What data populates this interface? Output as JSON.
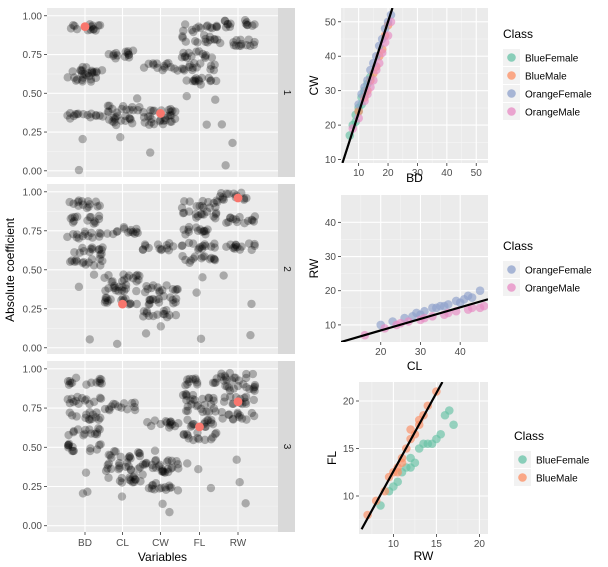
{
  "chart_data": [
    {
      "type": "scatter",
      "facet_type": "strip-jitter",
      "xlabel": "Variables",
      "ylabel": "Absolute coefficient",
      "categories": [
        "BD",
        "CL",
        "CW",
        "FL",
        "RW"
      ],
      "ylim": [
        0,
        1
      ],
      "yticks": [
        "0.00",
        "0.25",
        "0.50",
        "0.75",
        "1.00"
      ],
      "grid": true,
      "point_color": "#000000",
      "highlight_color": "#f8766d",
      "panels": [
        {
          "strip_label": "1",
          "clusters": {
            "BD": [
              0.92,
              0.65,
              0.6,
              0.35
            ],
            "CL": [
              0.75,
              0.4,
              0.33
            ],
            "CW": [
              0.67,
              0.37,
              0.32
            ],
            "FL": [
              0.92,
              0.85,
              0.75,
              0.67,
              0.58
            ],
            "RW": [
              0.95,
              0.83
            ]
          },
          "highlights": [
            {
              "x": "BD",
              "y": 0.93
            },
            {
              "x": "CW",
              "y": 0.37
            }
          ]
        },
        {
          "strip_label": "2",
          "clusters": {
            "BD": [
              0.92,
              0.82,
              0.72,
              0.62,
              0.55
            ],
            "CL": [
              0.75,
              0.45,
              0.38,
              0.3
            ],
            "CW": [
              0.65,
              0.38,
              0.3,
              0.22
            ],
            "FL": [
              0.92,
              0.85,
              0.75,
              0.65,
              0.57
            ],
            "RW": [
              0.97,
              0.82,
              0.65
            ]
          },
          "highlights": [
            {
              "x": "CL",
              "y": 0.28
            },
            {
              "x": "RW",
              "y": 0.96
            }
          ]
        },
        {
          "strip_label": "3",
          "clusters": {
            "BD": [
              0.92,
              0.8,
              0.7,
              0.6,
              0.5
            ],
            "CL": [
              0.76,
              0.45,
              0.38,
              0.3
            ],
            "CW": [
              0.65,
              0.4,
              0.35,
              0.25
            ],
            "FL": [
              0.92,
              0.82,
              0.75,
              0.65,
              0.57
            ],
            "RW": [
              0.95,
              0.88,
              0.8,
              0.7
            ]
          },
          "highlights": [
            {
              "x": "FL",
              "y": 0.63
            },
            {
              "x": "RW",
              "y": 0.79
            }
          ]
        }
      ]
    },
    {
      "type": "scatter",
      "xlabel": "BD",
      "ylabel": "CW",
      "xlim": [
        4,
        54
      ],
      "ylim": [
        9,
        54
      ],
      "xticks": [
        10,
        20,
        30,
        40,
        50
      ],
      "yticks": [
        10,
        20,
        30,
        40,
        50
      ],
      "legend_title": "Class",
      "legend_position": "right",
      "series": [
        {
          "name": "BlueFemale",
          "color": "#66c2a5",
          "points": [
            [
              7,
              17
            ],
            [
              8,
              20
            ],
            [
              9,
              23
            ],
            [
              10,
              25
            ],
            [
              11,
              28
            ],
            [
              12,
              30
            ],
            [
              13,
              32
            ],
            [
              11,
              26
            ],
            [
              9,
              21
            ],
            [
              14,
              34
            ],
            [
              12,
              29
            ],
            [
              10,
              24
            ]
          ]
        },
        {
          "name": "BlueMale",
          "color": "#fc8d62",
          "points": [
            [
              10,
              24
            ],
            [
              12,
              28
            ],
            [
              14,
              33
            ],
            [
              16,
              37
            ],
            [
              18,
              42
            ],
            [
              17,
              40
            ],
            [
              19,
              46
            ],
            [
              20,
              49
            ],
            [
              15,
              35
            ],
            [
              13,
              30
            ]
          ]
        },
        {
          "name": "OrangeFemale",
          "color": "#8da0cb",
          "points": [
            [
              10,
              26
            ],
            [
              12,
              31
            ],
            [
              14,
              36
            ],
            [
              16,
              40
            ],
            [
              18,
              45
            ],
            [
              19,
              48
            ],
            [
              21,
              52
            ],
            [
              15,
              38
            ],
            [
              13,
              33
            ],
            [
              17,
              43
            ],
            [
              20,
              50
            ],
            [
              11,
              29
            ]
          ]
        },
        {
          "name": "OrangeMale",
          "color": "#e78ac3",
          "points": [
            [
              8,
              19
            ],
            [
              10,
              22
            ],
            [
              12,
              27
            ],
            [
              14,
              31
            ],
            [
              16,
              36
            ],
            [
              18,
              41
            ],
            [
              20,
              46
            ],
            [
              21,
              50
            ],
            [
              13,
              29
            ],
            [
              15,
              33
            ],
            [
              17,
              38
            ],
            [
              19,
              44
            ]
          ]
        }
      ],
      "regression_line": [
        [
          4.5,
          9
        ],
        [
          21.5,
          54
        ]
      ]
    },
    {
      "type": "scatter",
      "xlabel": "CL",
      "ylabel": "RW",
      "xlim": [
        10,
        47
      ],
      "ylim": [
        5,
        48
      ],
      "xticks": [
        20,
        30,
        40
      ],
      "yticks": [
        10,
        20,
        30,
        40
      ],
      "legend_title": "Class",
      "legend_position": "right",
      "series": [
        {
          "name": "OrangeFemale",
          "color": "#8da0cb",
          "points": [
            [
              20,
              10
            ],
            [
              23,
              11
            ],
            [
              26,
              12
            ],
            [
              29,
              13.5
            ],
            [
              31,
              14
            ],
            [
              33,
              15
            ],
            [
              35,
              15.5
            ],
            [
              37,
              16
            ],
            [
              39,
              17
            ],
            [
              41,
              17.5
            ],
            [
              43,
              18
            ],
            [
              45,
              20
            ],
            [
              28,
              12.5
            ],
            [
              34,
              15
            ],
            [
              40,
              16.5
            ],
            [
              36,
              15.5
            ],
            [
              30,
              13
            ],
            [
              42,
              18.5
            ]
          ]
        },
        {
          "name": "OrangeMale",
          "color": "#e78ac3",
          "points": [
            [
              16,
              7
            ],
            [
              21,
              9
            ],
            [
              24,
              10
            ],
            [
              27,
              11
            ],
            [
              30,
              11.5
            ],
            [
              33,
              12.5
            ],
            [
              36,
              13
            ],
            [
              39,
              14
            ],
            [
              42,
              14.5
            ],
            [
              45,
              15
            ],
            [
              25,
              10.5
            ],
            [
              31,
              12
            ],
            [
              37,
              13.5
            ],
            [
              43,
              15
            ],
            [
              46,
              15.5
            ]
          ]
        }
      ],
      "regression_line": [
        [
          10,
          5
        ],
        [
          47,
          17.5
        ]
      ]
    },
    {
      "type": "scatter",
      "xlabel": "RW",
      "ylabel": "FL",
      "xlim": [
        6,
        21
      ],
      "ylim": [
        6,
        22
      ],
      "xticks": [
        10,
        15,
        20
      ],
      "yticks": [
        10,
        15,
        20
      ],
      "legend_title": "Class",
      "legend_position": "right",
      "series": [
        {
          "name": "BlueFemale",
          "color": "#66c2a5",
          "points": [
            [
              8.5,
              9
            ],
            [
              9.5,
              10.5
            ],
            [
              10.5,
              11.5
            ],
            [
              11,
              12.5
            ],
            [
              11.5,
              13
            ],
            [
              12,
              14
            ],
            [
              12.5,
              13.5
            ],
            [
              13,
              15
            ],
            [
              13.5,
              15.5
            ],
            [
              14,
              15.5
            ],
            [
              15,
              16
            ],
            [
              15.5,
              16.5
            ],
            [
              16,
              18.5
            ],
            [
              16.5,
              19
            ],
            [
              17,
              17.5
            ],
            [
              10,
              11
            ],
            [
              12,
              13
            ],
            [
              14.5,
              15.5
            ]
          ]
        },
        {
          "name": "BlueMale",
          "color": "#fc8d62",
          "points": [
            [
              7,
              8
            ],
            [
              8,
              9.5
            ],
            [
              9,
              10.5
            ],
            [
              9.5,
              12
            ],
            [
              10,
              12.5
            ],
            [
              10.5,
              13
            ],
            [
              11,
              13.5
            ],
            [
              11.5,
              15
            ],
            [
              12,
              16
            ],
            [
              12.5,
              16.5
            ],
            [
              13,
              17.5
            ],
            [
              13.5,
              18.5
            ],
            [
              14,
              19.5
            ],
            [
              15,
              21
            ],
            [
              13,
              18
            ],
            [
              12,
              17
            ],
            [
              11,
              14
            ],
            [
              10.5,
              12.5
            ]
          ]
        }
      ],
      "regression_line": [
        [
          6.3,
          6.5
        ],
        [
          15.7,
          22
        ]
      ]
    }
  ]
}
